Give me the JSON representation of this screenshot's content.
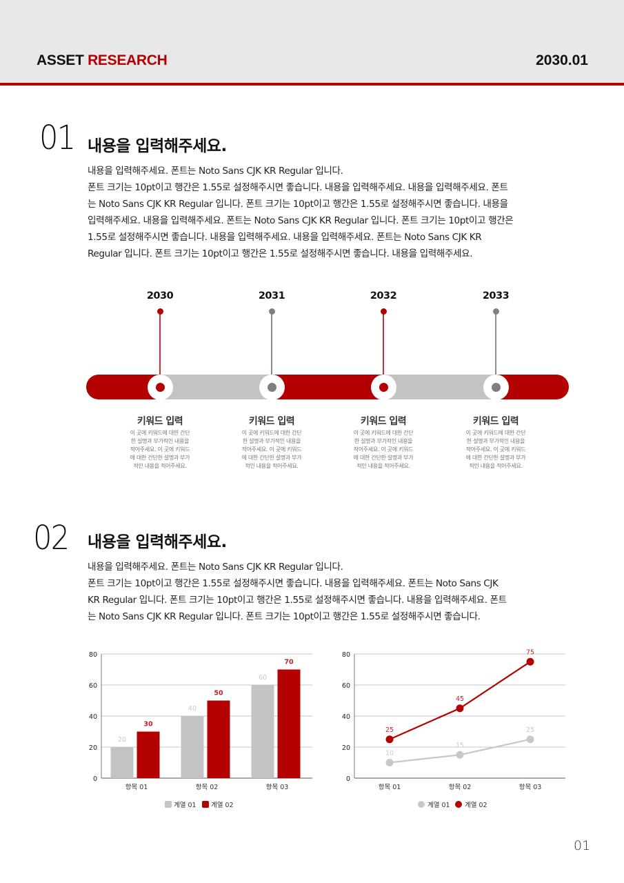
{
  "header": {
    "brand_part1": "ASSET",
    "brand_part2": "RESEARCH",
    "date": "2030.01",
    "background": "#e8e8e8",
    "accent": "#b30000"
  },
  "section1": {
    "number": "01",
    "title": "내용을 입력해주세요.",
    "lines": [
      "내용을 입력해주세요. 폰트는 Noto Sans CJK KR Regular 입니다.",
      "폰트 크기는 10pt이고 행간은 1.55로 설정해주시면 좋습니다. 내용을 입력해주세요. 내용을 입력해주세요. 폰트",
      "는 Noto Sans CJK KR Regular 입니다. 폰트 크기는 10pt이고 행간은 1.55로 설정해주시면 좋습니다. 내용을",
      "입력해주세요. 내용을 입력해주세요. 폰트는 Noto Sans CJK KR Regular 입니다. 폰트 크기는 10pt이고 행간은",
      "1.55로 설정해주시면 좋습니다. 내용을 입력해주세요. 내용을 입력해주세요. 폰트는 Noto Sans CJK KR",
      "Regular 입니다. 폰트 크기는 10pt이고 행간은 1.55로 설정해주시면 좋습니다. 내용을 입력해주세요."
    ]
  },
  "timeline": {
    "items": [
      {
        "year": "2030",
        "color": "#b30000",
        "keyword": "키워드 입력",
        "desc": [
          "이 곳에 키워드에 대한 간단",
          "한 설명과 부가적인 내용을",
          "적어주세요. 이 곳에 키워드",
          "에 대한 간단한 설명과 부가",
          "적인 내용을 적어주세요."
        ]
      },
      {
        "year": "2031",
        "color": "#7f7f7f",
        "keyword": "키워드 입력",
        "desc": [
          "이 곳에 키워드에 대한 간단",
          "한 설명과 부가적인 내용을",
          "적어주세요. 이 곳에 키워드",
          "에 대한 간단한 설명과 부가",
          "적인 내용을 적어주세요."
        ]
      },
      {
        "year": "2032",
        "color": "#b30000",
        "keyword": "키워드 입력",
        "desc": [
          "이 곳에 키워드에 대한 간단",
          "한 설명과 부가적인 내용을",
          "적어주세요. 이 곳에 키워드",
          "에 대한 간단한 설명과 부가",
          "적인 내용을 적어주세요."
        ]
      },
      {
        "year": "2033",
        "color": "#7f7f7f",
        "keyword": "키워드 입력",
        "desc": [
          "이 곳에 키워드에 대한 간단",
          "한 설명과 부가적인 내용을",
          "적어주세요. 이 곳에 키워드",
          "에 대한 간단한 설명과 부가",
          "적인 내용을 적어주세요."
        ]
      }
    ]
  },
  "section2": {
    "number": "02",
    "title": "내용을 입력해주세요.",
    "lines": [
      "내용을 입력해주세요. 폰트는 Noto Sans CJK KR Regular 입니다.",
      "폰트 크기는 10pt이고 행간은 1.55로 설정해주시면 좋습니다. 내용을 입력해주세요. 폰트는 Noto Sans CJK",
      "KR Regular 입니다. 폰트 크기는 10pt이고 행간은 1.55로 설정해주시면 좋습니다. 내용을 입력해주세요. 폰트",
      "는 Noto Sans CJK KR Regular 입니다. 폰트 크기는 10pt이고 행간은 1.55로 설정해주시면 좋습니다."
    ]
  },
  "chart_data": [
    {
      "type": "bar",
      "title": "",
      "categories": [
        "항목 01",
        "항목 02",
        "항목 03"
      ],
      "series": [
        {
          "name": "계열 01",
          "values": [
            20,
            40,
            60
          ],
          "color": "#c3c2c4"
        },
        {
          "name": "계열 02",
          "values": [
            30,
            50,
            70
          ],
          "color": "#b30000"
        }
      ],
      "yticks": [
        0,
        20,
        40,
        60,
        80
      ],
      "ylim": [
        0,
        80
      ],
      "xlabel": "",
      "ylabel": "",
      "grid": true,
      "legend_position": "bottom"
    },
    {
      "type": "line",
      "title": "",
      "categories": [
        "항목 01",
        "항목 02",
        "항목 03"
      ],
      "series": [
        {
          "name": "계열 01",
          "values": [
            10,
            15,
            25
          ],
          "color": "#c8c8c8"
        },
        {
          "name": "계열 02",
          "values": [
            25,
            45,
            75
          ],
          "color": "#b30000"
        }
      ],
      "yticks": [
        0,
        20,
        40,
        60,
        80
      ],
      "ylim": [
        0,
        80
      ],
      "xlabel": "",
      "ylabel": "",
      "grid": true,
      "legend_position": "bottom"
    }
  ],
  "footer": {
    "page_number": "01"
  }
}
